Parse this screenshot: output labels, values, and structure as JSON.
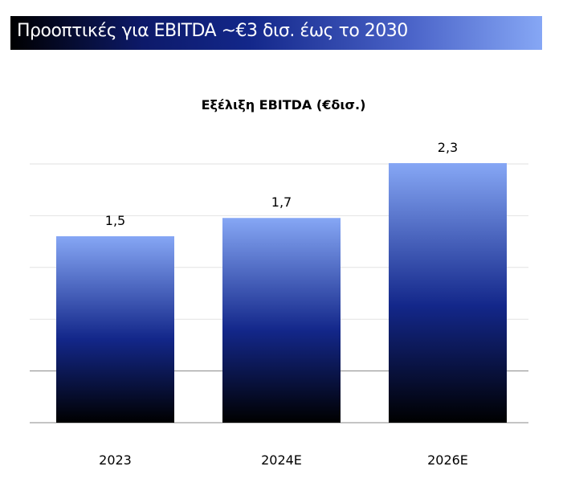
{
  "header": {
    "title": "Προοπτικές για EBITDA ~€3 δισ. έως το 2030"
  },
  "colors": {
    "bar_top": "#86a7f5",
    "bar_mid": "#13278a",
    "bar_bottom": "#000000"
  },
  "chart_data": {
    "type": "bar",
    "title": "Εξέλιξη EBITDA (€δισ.)",
    "categories": [
      "2023",
      "2024E",
      "2026E"
    ],
    "values": [
      1.5,
      1.7,
      2.3
    ],
    "data_labels": [
      "1,5",
      "1,7",
      "2,3"
    ],
    "xlabel": "",
    "ylabel": "",
    "ylim": [
      -0.54,
      2.3
    ],
    "grid": true,
    "legend": "none"
  }
}
